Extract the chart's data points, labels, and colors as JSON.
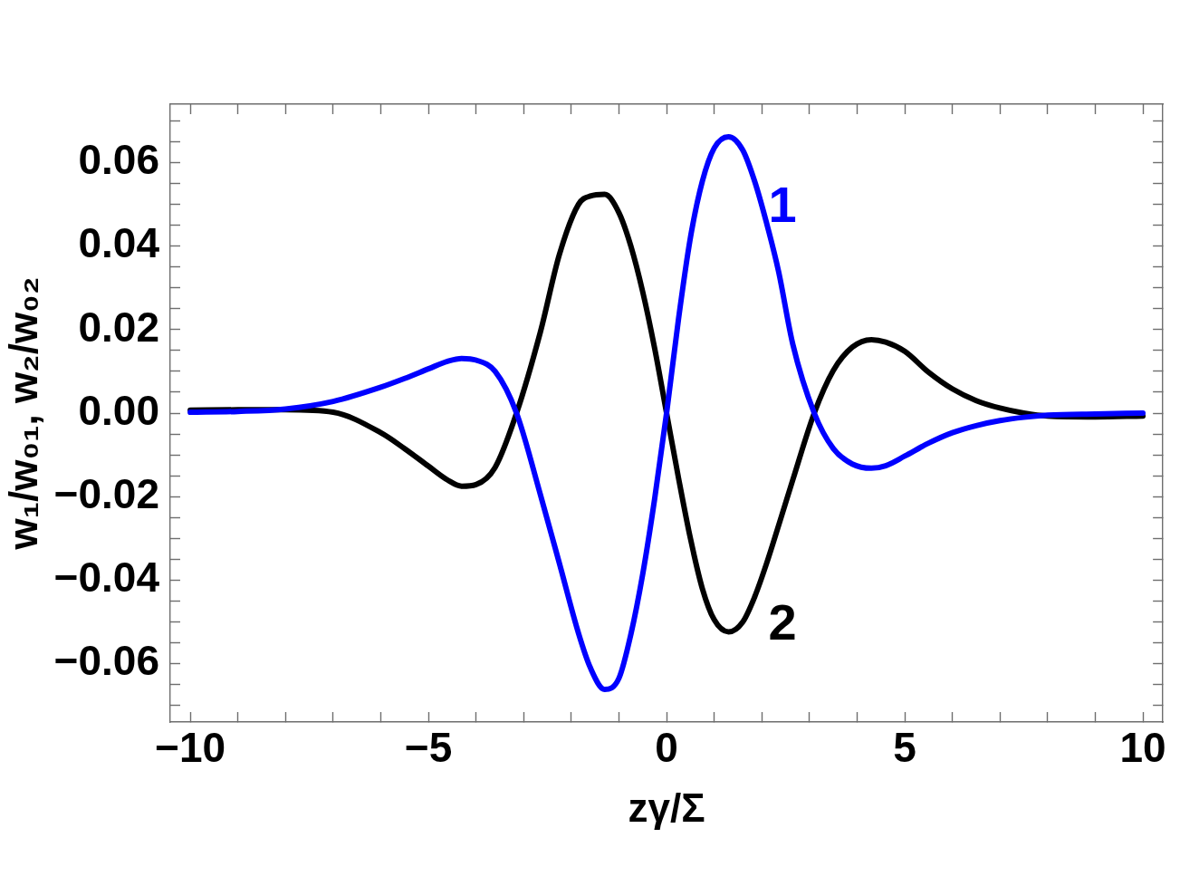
{
  "chart_data": {
    "type": "line",
    "xlabel": "zγ/Σ",
    "ylabel": "w₁/w₀₁, w₂/w₀₂",
    "x": [
      -10,
      -9,
      -8,
      -7,
      -6,
      -5.5,
      -5,
      -4.6,
      -4.3,
      -4,
      -3.6,
      -3.15,
      -2.65,
      -2.25,
      -1.85,
      -1.6,
      -1.3,
      -1,
      -0.75,
      -0.5,
      -0.25,
      0,
      0.25,
      0.5,
      0.75,
      1,
      1.3,
      1.6,
      1.85,
      2.1,
      2.35,
      2.65,
      3.1,
      3.5,
      3.9,
      4.3,
      4.6,
      5,
      5.5,
      6,
      6.5,
      7,
      7.5,
      8,
      9,
      10
    ],
    "series": [
      {
        "name": "1",
        "color": "#0000ff",
        "values": [
          0.0002,
          0.0004,
          0.001,
          0.0028,
          0.0062,
          0.0083,
          0.0106,
          0.0124,
          0.0131,
          0.0127,
          0.01,
          0,
          -0.0195,
          -0.036,
          -0.0527,
          -0.061,
          -0.0662,
          -0.0635,
          -0.053,
          -0.0385,
          -0.0205,
          0,
          0.0225,
          0.042,
          0.0555,
          0.0635,
          0.0662,
          0.063,
          0.0555,
          0.0455,
          0.034,
          0.0165,
          0,
          -0.0085,
          -0.0122,
          -0.0132,
          -0.0126,
          -0.0103,
          -0.0072,
          -0.0047,
          -0.003,
          -0.0018,
          -0.001,
          -0.0005,
          -0.0002,
          0
        ]
      },
      {
        "name": "2",
        "color": "#000000",
        "values": [
          0.0007,
          0.0008,
          0.0008,
          0.0002,
          -0.0047,
          -0.0085,
          -0.0127,
          -0.016,
          -0.0175,
          -0.0171,
          -0.013,
          0,
          0.0194,
          0.038,
          0.05,
          0.052,
          0.0524,
          0.048,
          0.04,
          0.029,
          0.0155,
          0,
          -0.0155,
          -0.03,
          -0.042,
          -0.0495,
          -0.0524,
          -0.05,
          -0.044,
          -0.036,
          -0.027,
          -0.016,
          0,
          0.0102,
          0.0158,
          0.0176,
          0.017,
          0.0148,
          0.0098,
          0.0058,
          0.003,
          0.0012,
          0,
          -0.0007,
          -0.0009,
          -0.0007
        ]
      }
    ],
    "xlim": [
      -10.42,
      10.42
    ],
    "ylim": [
      -0.074,
      0.074
    ],
    "xticks": [
      {
        "value": -10,
        "label": "−10"
      },
      {
        "value": -9,
        "label": null
      },
      {
        "value": -8,
        "label": null
      },
      {
        "value": -7,
        "label": null
      },
      {
        "value": -6,
        "label": null
      },
      {
        "value": -5,
        "label": "−5"
      },
      {
        "value": -4,
        "label": null
      },
      {
        "value": -3,
        "label": null
      },
      {
        "value": -2,
        "label": null
      },
      {
        "value": -1,
        "label": null
      },
      0,
      {
        "value": 1,
        "label": null
      },
      {
        "value": 2,
        "label": null
      },
      {
        "value": 3,
        "label": null
      },
      {
        "value": 4,
        "label": null
      },
      5,
      {
        "value": 6,
        "label": null
      },
      {
        "value": 7,
        "label": null
      },
      {
        "value": 8,
        "label": null
      },
      {
        "value": 9,
        "label": null
      },
      10
    ],
    "yticks": [
      {
        "value": -0.07,
        "label": null
      },
      {
        "value": -0.065,
        "label": null
      },
      {
        "value": -0.06,
        "label": "−0.06"
      },
      {
        "value": -0.055,
        "label": null
      },
      {
        "value": -0.05,
        "label": null
      },
      {
        "value": -0.045,
        "label": null
      },
      {
        "value": -0.04,
        "label": "−0.04"
      },
      {
        "value": -0.035,
        "label": null
      },
      {
        "value": -0.03,
        "label": null
      },
      {
        "value": -0.025,
        "label": null
      },
      {
        "value": -0.02,
        "label": "−0.02"
      },
      {
        "value": -0.015,
        "label": null
      },
      {
        "value": -0.01,
        "label": null
      },
      {
        "value": -0.005,
        "label": null
      },
      {
        "value": 0,
        "label": "0.00"
      },
      {
        "value": 0.005,
        "label": null
      },
      {
        "value": 0.01,
        "label": null
      },
      {
        "value": 0.015,
        "label": null
      },
      0.02,
      {
        "value": 0.025,
        "label": null
      },
      {
        "value": 0.03,
        "label": null
      },
      {
        "value": 0.035,
        "label": null
      },
      0.04,
      {
        "value": 0.045,
        "label": null
      },
      {
        "value": 0.05,
        "label": null
      },
      {
        "value": 0.055,
        "label": null
      },
      0.06,
      {
        "value": 0.065,
        "label": null
      },
      {
        "value": 0.07,
        "label": null
      }
    ],
    "grid": false,
    "legend": false,
    "marker": "none",
    "line_style": "solid"
  }
}
